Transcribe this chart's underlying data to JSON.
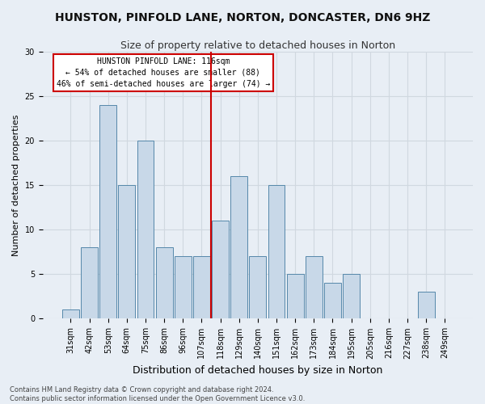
{
  "title": "HUNSTON, PINFOLD LANE, NORTON, DONCASTER, DN6 9HZ",
  "subtitle": "Size of property relative to detached houses in Norton",
  "xlabel": "Distribution of detached houses by size in Norton",
  "ylabel": "Number of detached properties",
  "categories": [
    "31sqm",
    "42sqm",
    "53sqm",
    "64sqm",
    "75sqm",
    "86sqm",
    "96sqm",
    "107sqm",
    "118sqm",
    "129sqm",
    "140sqm",
    "151sqm",
    "162sqm",
    "173sqm",
    "184sqm",
    "195sqm",
    "205sqm",
    "216sqm",
    "227sqm",
    "238sqm",
    "249sqm"
  ],
  "values": [
    1,
    8,
    24,
    15,
    20,
    8,
    7,
    7,
    11,
    16,
    7,
    15,
    5,
    7,
    4,
    5,
    0,
    0,
    0,
    3,
    0
  ],
  "bar_color": "#c8d8e8",
  "bar_edge_color": "#5588aa",
  "vline_index": 8,
  "vline_color": "#cc0000",
  "annotation_lines": [
    "HUNSTON PINFOLD LANE: 116sqm",
    "← 54% of detached houses are smaller (88)",
    "46% of semi-detached houses are larger (74) →"
  ],
  "annotation_box_color": "#ffffff",
  "annotation_box_edge_color": "#cc0000",
  "ylim": [
    0,
    30
  ],
  "yticks": [
    0,
    5,
    10,
    15,
    20,
    25,
    30
  ],
  "grid_color": "#d0d8e0",
  "bg_color": "#e8eef5",
  "footer_line1": "Contains HM Land Registry data © Crown copyright and database right 2024.",
  "footer_line2": "Contains public sector information licensed under the Open Government Licence v3.0.",
  "title_fontsize": 10,
  "subtitle_fontsize": 9,
  "ylabel_fontsize": 8,
  "xlabel_fontsize": 9,
  "tick_fontsize": 7,
  "annotation_fontsize": 7,
  "footer_fontsize": 6
}
